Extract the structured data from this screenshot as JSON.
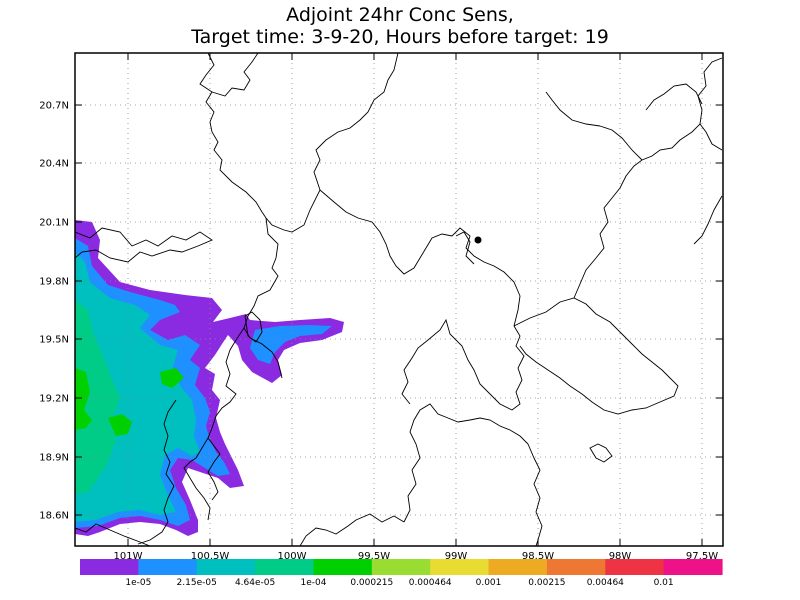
{
  "title": {
    "line1": "Adjoint 24hr Conc Sens,",
    "line2": "Target time: 3-9-20, Hours before target: 19"
  },
  "map": {
    "lat_labels": [
      "20.7N",
      "20.4N",
      "20.1N",
      "19.8N",
      "19.5N",
      "19.2N",
      "18.9N",
      "18.6N"
    ],
    "lon_labels": [
      "101W",
      "100.5W",
      "100W",
      "99.5W",
      "99W",
      "98.5W",
      "98W",
      "97.5W"
    ],
    "grid": true,
    "source_marker": "dot"
  },
  "colorbar": {
    "labels": [
      "1e-05",
      "2.15e-05",
      "4.64e-05",
      "1e-04",
      "0.000215",
      "0.000464",
      "0.001",
      "0.00215",
      "0.00464",
      "0.01"
    ],
    "colors": [
      "#8a2be2",
      "#1e90ff",
      "#00bfbf",
      "#00cc88",
      "#00d000",
      "#99dd33",
      "#e8dc33",
      "#eeaa22",
      "#ee7733",
      "#ee3344",
      "#ee1188"
    ]
  }
}
